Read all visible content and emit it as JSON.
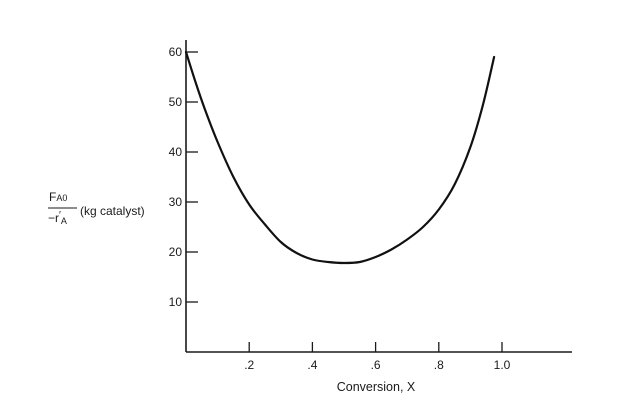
{
  "chart_data": {
    "type": "line",
    "title": "",
    "xlabel": "Conversion, X",
    "ylabel": {
      "numerator": "F",
      "numerator_sub": "A0",
      "denominator_prefix": "−r",
      "denominator_prime": "′",
      "denominator_sub": "A",
      "units": "(kg catalyst)"
    },
    "xlim": [
      0,
      1.2
    ],
    "ylim": [
      0,
      62
    ],
    "x_ticks": [
      {
        "value": 0.2,
        "label": ".2"
      },
      {
        "value": 0.4,
        "label": ".4"
      },
      {
        "value": 0.6,
        "label": ".6"
      },
      {
        "value": 0.8,
        "label": ".8"
      },
      {
        "value": 1.0,
        "label": "1.0"
      }
    ],
    "y_ticks": [
      {
        "value": 10,
        "label": "10"
      },
      {
        "value": 20,
        "label": "20"
      },
      {
        "value": 30,
        "label": "30"
      },
      {
        "value": 40,
        "label": "40"
      },
      {
        "value": 50,
        "label": "50"
      },
      {
        "value": 60,
        "label": "60"
      }
    ],
    "grid": false,
    "legend": "none",
    "series": [
      {
        "x": [
          0.0,
          0.03,
          0.06,
          0.1,
          0.15,
          0.2,
          0.25,
          0.3,
          0.35,
          0.4,
          0.45,
          0.5,
          0.55,
          0.6,
          0.65,
          0.7,
          0.75,
          0.8,
          0.85,
          0.9,
          0.94,
          0.975
        ],
        "y": [
          60,
          54,
          48.5,
          42,
          35,
          29.5,
          25.5,
          22,
          19.8,
          18.5,
          18,
          17.8,
          18,
          19,
          20.5,
          22.5,
          25,
          28.5,
          33.5,
          41,
          49.5,
          59
        ]
      }
    ]
  }
}
